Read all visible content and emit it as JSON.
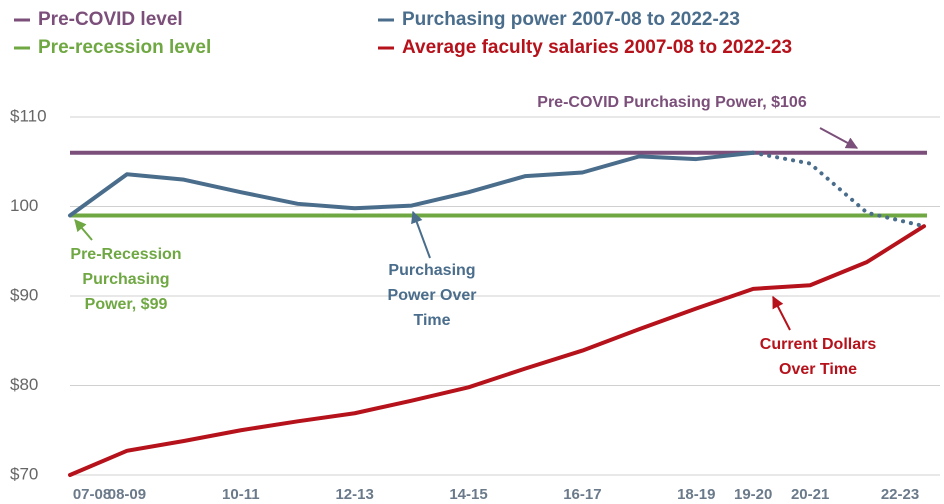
{
  "chart_data": {
    "type": "line",
    "categories": [
      "07-08",
      "08-09",
      null,
      "10-11",
      null,
      "12-13",
      null,
      "14-15",
      null,
      "16-17",
      null,
      "18-19",
      "19-20",
      "20-21",
      null,
      "22-23"
    ],
    "reference_lines": [
      {
        "name": "Pre-COVID level",
        "color": "#7b4f7a",
        "value": 106
      },
      {
        "name": "Pre-recession level",
        "color": "#6fa843",
        "value": 99
      }
    ],
    "series": [
      {
        "name": "Purchasing power 2007-08 to 2022-23",
        "color": "#4a6d8c",
        "dotted_from_index": 12,
        "values": [
          99,
          103.6,
          103.0,
          101.6,
          100.3,
          99.8,
          100.1,
          101.6,
          103.4,
          103.8,
          105.6,
          105.3,
          106,
          104.8,
          99.3,
          97.8
        ]
      },
      {
        "name": "Average faculty salaries 2007-08 to 2022-23",
        "color": "#b5121b",
        "values": [
          70.0,
          72.7,
          73.8,
          75.0,
          76.0,
          76.9,
          78.3,
          79.8,
          81.9,
          83.9,
          86.3,
          88.6,
          90.8,
          91.2,
          93.8,
          97.8
        ]
      }
    ],
    "ylim": [
      70,
      110
    ],
    "yticks": [
      {
        "value": 110,
        "label": "$110"
      },
      100,
      {
        "value": 90,
        "label": "$90"
      },
      {
        "value": 80,
        "label": "$80"
      },
      {
        "value": 70,
        "label": "$70"
      }
    ],
    "grid": true,
    "annotations": [
      {
        "lines": [
          "Pre-COVID Purchasing Power, $106"
        ],
        "color": "#7b4f7a"
      },
      {
        "lines": [
          "Pre-Recession",
          "Purchasing",
          "Power, $99"
        ],
        "color": "#6fa843"
      },
      {
        "lines": [
          "Purchasing",
          "Power Over",
          "Time"
        ],
        "color": "#4a6d8c"
      },
      {
        "lines": [
          "Current Dollars",
          "Over Time"
        ],
        "color": "#b5121b"
      }
    ]
  }
}
